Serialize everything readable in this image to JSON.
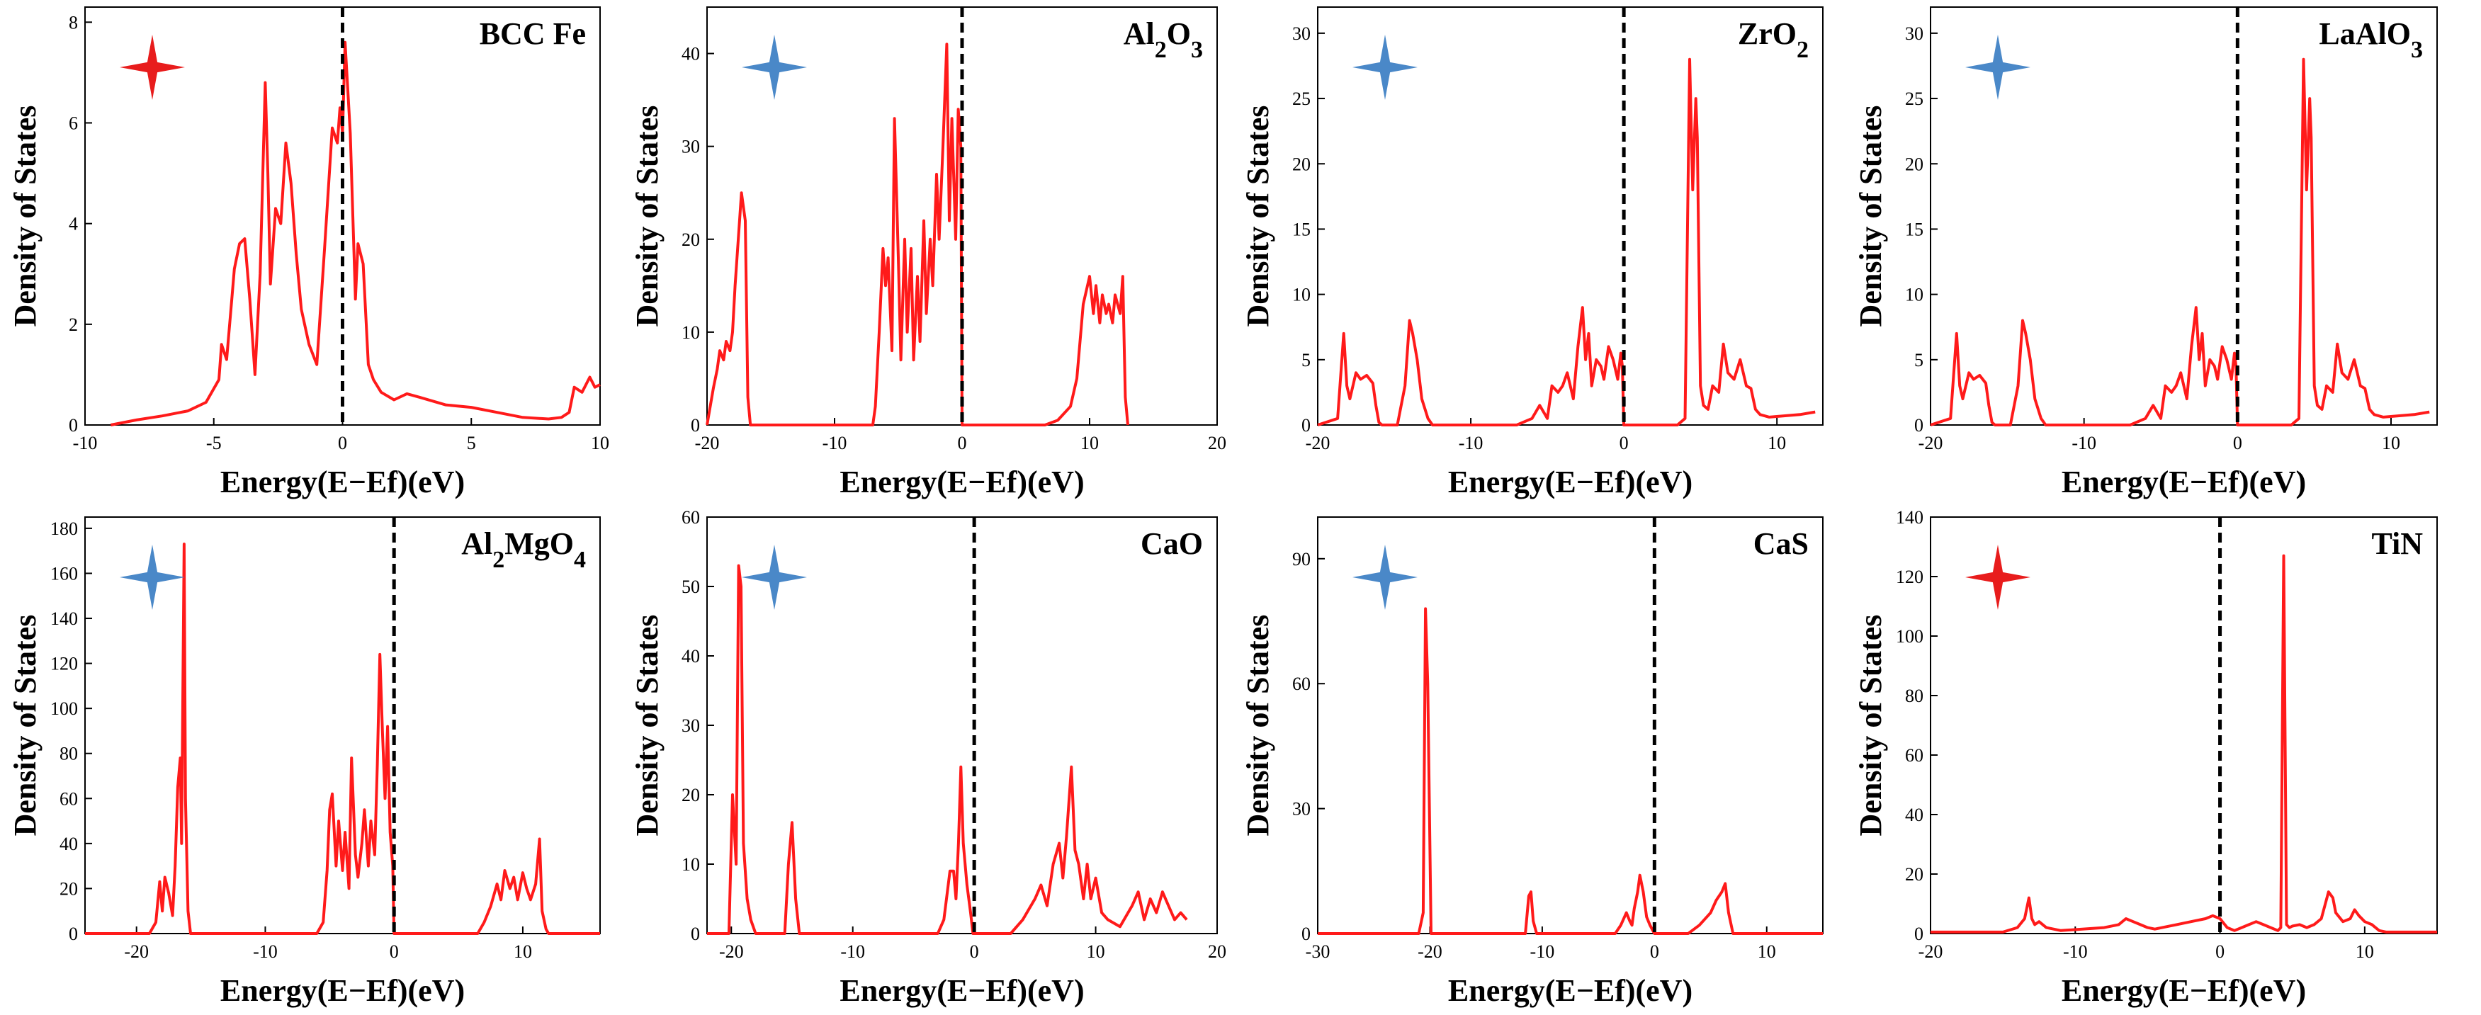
{
  "figure": {
    "colors": {
      "line": "#ff1a1a",
      "fermi": "#000000",
      "star_red": "#e81c1c",
      "star_blue": "#4a88c8"
    }
  },
  "chart_data": [
    {
      "type": "line",
      "title": "BCC Fe",
      "title_parts": [
        {
          "t": "BCC Fe",
          "sub": false
        }
      ],
      "xlabel": "Energy(E−Ef)(eV)",
      "ylabel": "Density of States",
      "xlim": [
        -10,
        10
      ],
      "ylim": [
        0,
        8.3
      ],
      "xticks": [
        -10,
        -5,
        0,
        5,
        10
      ],
      "yticks": [
        0,
        2,
        4,
        6,
        8
      ],
      "star": "red",
      "fermi_level": 0,
      "x": [
        -9,
        -8,
        -7,
        -6,
        -5.3,
        -4.8,
        -4.7,
        -4.5,
        -4.3,
        -4.2,
        -4.0,
        -3.8,
        -3.6,
        -3.4,
        -3.2,
        -3.0,
        -2.9,
        -2.8,
        -2.6,
        -2.4,
        -2.2,
        -2.0,
        -1.8,
        -1.6,
        -1.3,
        -1.0,
        -0.7,
        -0.4,
        -0.2,
        -0.1,
        0.0,
        0.1,
        0.3,
        0.5,
        0.6,
        0.8,
        1.0,
        1.2,
        1.5,
        2.0,
        2.5,
        3,
        4,
        5,
        6,
        7,
        8,
        8.5,
        8.8,
        9.0,
        9.3,
        9.6,
        9.8,
        10
      ],
      "values": [
        0,
        0.1,
        0.18,
        0.28,
        0.45,
        0.9,
        1.6,
        1.3,
        2.5,
        3.1,
        3.6,
        3.7,
        2.5,
        1.0,
        3.0,
        6.8,
        5.0,
        2.8,
        4.3,
        4.0,
        5.6,
        4.8,
        3.4,
        2.3,
        1.6,
        1.2,
        3.5,
        5.9,
        5.6,
        6.3,
        5.8,
        7.6,
        5.8,
        2.5,
        3.6,
        3.2,
        1.2,
        0.9,
        0.65,
        0.5,
        0.62,
        0.55,
        0.4,
        0.35,
        0.25,
        0.15,
        0.12,
        0.15,
        0.25,
        0.75,
        0.65,
        0.95,
        0.75,
        0.8
      ]
    },
    {
      "type": "line",
      "title": "Al2O3",
      "title_parts": [
        {
          "t": "Al",
          "sub": false
        },
        {
          "t": "2",
          "sub": true
        },
        {
          "t": "O",
          "sub": false
        },
        {
          "t": "3",
          "sub": true
        }
      ],
      "xlabel": "Energy(E−Ef)(eV)",
      "ylabel": "Density of States",
      "xlim": [
        -20,
        20
      ],
      "ylim": [
        0,
        45
      ],
      "xticks": [
        -20,
        -10,
        0,
        10,
        20
      ],
      "yticks": [
        0,
        10,
        20,
        30,
        40
      ],
      "star": "blue",
      "fermi_level": 0,
      "x": [
        -20,
        -19.5,
        -19.2,
        -19.0,
        -18.7,
        -18.5,
        -18.2,
        -18.0,
        -17.8,
        -17.5,
        -17.3,
        -17.0,
        -16.8,
        -16.6,
        -16.5,
        -7.0,
        -6.8,
        -6.5,
        -6.2,
        -6.0,
        -5.8,
        -5.5,
        -5.3,
        -5.0,
        -4.8,
        -4.5,
        -4.3,
        -4.0,
        -3.8,
        -3.5,
        -3.3,
        -3.0,
        -2.8,
        -2.5,
        -2.3,
        -2.0,
        -1.8,
        -1.5,
        -1.2,
        -1.0,
        -0.8,
        -0.5,
        -0.3,
        -0.1,
        0.0,
        6.5,
        7.5,
        8.5,
        9.0,
        9.5,
        10.0,
        10.3,
        10.5,
        10.8,
        11.0,
        11.3,
        11.5,
        11.8,
        12.0,
        12.2,
        12.4,
        12.6,
        12.8,
        13.0
      ],
      "values": [
        0,
        4,
        6,
        8,
        7,
        9,
        8,
        10,
        15,
        21,
        25,
        22,
        3,
        0,
        0,
        0,
        2,
        10,
        19,
        15,
        18,
        8,
        33,
        18,
        7,
        20,
        10,
        19,
        7,
        16,
        9,
        22,
        12,
        20,
        15,
        27,
        20,
        30,
        41,
        22,
        33,
        20,
        34,
        30,
        0,
        0,
        0.5,
        2,
        5,
        13,
        16,
        12,
        15,
        11,
        14,
        12,
        13,
        11,
        14,
        13,
        12,
        16,
        3,
        0
      ]
    },
    {
      "type": "line",
      "title": "ZrO2",
      "title_parts": [
        {
          "t": "ZrO",
          "sub": false
        },
        {
          "t": "2",
          "sub": true
        }
      ],
      "xlabel": "Energy(E−Ef)(eV)",
      "ylabel": "Density of States",
      "xlim": [
        -20,
        13
      ],
      "ylim": [
        0,
        32
      ],
      "xticks": [
        -20,
        -10,
        0,
        10
      ],
      "yticks": [
        0,
        5,
        10,
        15,
        20,
        25,
        30
      ],
      "star": "blue",
      "fermi_level": 0,
      "x": [
        -20,
        -18.7,
        -18.3,
        -18.1,
        -17.9,
        -17.5,
        -17.2,
        -16.8,
        -16.4,
        -16.2,
        -16.0,
        -15.8,
        -14.8,
        -14.3,
        -14.0,
        -13.8,
        -13.5,
        -13.2,
        -12.8,
        -12.5,
        -7.0,
        -6.0,
        -5.5,
        -5.0,
        -4.7,
        -4.3,
        -4.0,
        -3.7,
        -3.3,
        -3.0,
        -2.7,
        -2.5,
        -2.3,
        -2.1,
        -1.8,
        -1.5,
        -1.3,
        -1.0,
        -0.7,
        -0.4,
        -0.2,
        -0.1,
        0.0,
        3.5,
        4.0,
        4.3,
        4.5,
        4.7,
        4.8,
        5.0,
        5.2,
        5.5,
        5.8,
        6.2,
        6.5,
        6.8,
        7.2,
        7.6,
        8.0,
        8.3,
        8.6,
        8.9,
        9.5,
        11.5,
        12.5
      ],
      "values": [
        0,
        0.5,
        7,
        3,
        2,
        4,
        3.5,
        3.8,
        3.2,
        1.5,
        0.2,
        0,
        0,
        3,
        8,
        7,
        5,
        2,
        0.5,
        0,
        0,
        0.5,
        1.5,
        0.5,
        3,
        2.5,
        3,
        4,
        2,
        6,
        9,
        5,
        7,
        3,
        5,
        4.5,
        3.5,
        6,
        5,
        3.5,
        5.5,
        4.5,
        0,
        0,
        0.5,
        28,
        18,
        25,
        22,
        3,
        1.5,
        1.2,
        3,
        2.5,
        6.2,
        4,
        3.5,
        5.0,
        3.0,
        2.8,
        1.2,
        0.8,
        0.6,
        0.8,
        1.0
      ]
    },
    {
      "type": "line",
      "title": "LaAlO3",
      "title_parts": [
        {
          "t": "LaAlO",
          "sub": false
        },
        {
          "t": "3",
          "sub": true
        }
      ],
      "xlabel": "Energy(E−Ef)(eV)",
      "ylabel": "Density of States",
      "xlim": [
        -20,
        13
      ],
      "ylim": [
        0,
        32
      ],
      "xticks": [
        -20,
        -10,
        0,
        10
      ],
      "yticks": [
        0,
        5,
        10,
        15,
        20,
        25,
        30
      ],
      "star": "blue",
      "fermi_level": 0,
      "x": [
        -20,
        -18.7,
        -18.3,
        -18.1,
        -17.9,
        -17.5,
        -17.2,
        -16.8,
        -16.4,
        -16.2,
        -16.0,
        -15.8,
        -14.8,
        -14.3,
        -14.0,
        -13.8,
        -13.5,
        -13.2,
        -12.8,
        -12.5,
        -7.0,
        -6.0,
        -5.5,
        -5.0,
        -4.7,
        -4.3,
        -4.0,
        -3.7,
        -3.3,
        -3.0,
        -2.7,
        -2.5,
        -2.3,
        -2.1,
        -1.8,
        -1.5,
        -1.3,
        -1.0,
        -0.7,
        -0.4,
        -0.2,
        -0.1,
        0.0,
        3.5,
        4.0,
        4.3,
        4.5,
        4.7,
        4.8,
        5.0,
        5.2,
        5.5,
        5.8,
        6.2,
        6.5,
        6.8,
        7.2,
        7.6,
        8.0,
        8.3,
        8.6,
        8.9,
        9.5,
        11.5,
        12.5
      ],
      "values": [
        0,
        0.5,
        7,
        3,
        2,
        4,
        3.5,
        3.8,
        3.2,
        1.5,
        0.2,
        0,
        0,
        3,
        8,
        7,
        5,
        2,
        0.5,
        0,
        0,
        0.5,
        1.5,
        0.5,
        3,
        2.5,
        3,
        4,
        2,
        6,
        9,
        5,
        7,
        3,
        5,
        4.5,
        3.5,
        6,
        5,
        3.5,
        5.5,
        4.5,
        0,
        0,
        0.5,
        28,
        18,
        25,
        22,
        3,
        1.5,
        1.2,
        3,
        2.5,
        6.2,
        4,
        3.5,
        5.0,
        3.0,
        2.8,
        1.2,
        0.8,
        0.6,
        0.8,
        1.0
      ]
    },
    {
      "type": "line",
      "title": "Al2MgO4",
      "title_parts": [
        {
          "t": "Al",
          "sub": false
        },
        {
          "t": "2",
          "sub": true
        },
        {
          "t": "MgO",
          "sub": false
        },
        {
          "t": "4",
          "sub": true
        }
      ],
      "xlabel": "Energy(E−Ef)(eV)",
      "ylabel": "Density of States",
      "xlim": [
        -24,
        16
      ],
      "ylim": [
        0,
        185
      ],
      "xticks": [
        -20,
        -10,
        0,
        10
      ],
      "yticks": [
        0,
        20,
        40,
        60,
        80,
        100,
        120,
        140,
        160,
        180
      ],
      "star": "blue",
      "fermi_level": 0,
      "x": [
        -24,
        -19.0,
        -18.5,
        -18.2,
        -18.0,
        -17.8,
        -17.5,
        -17.2,
        -17.0,
        -16.8,
        -16.6,
        -16.5,
        -16.3,
        -16.2,
        -16.0,
        -15.8,
        -6.0,
        -5.5,
        -5.2,
        -5.0,
        -4.8,
        -4.5,
        -4.3,
        -4.0,
        -3.8,
        -3.5,
        -3.3,
        -3.0,
        -2.8,
        -2.5,
        -2.3,
        -2.0,
        -1.8,
        -1.5,
        -1.3,
        -1.1,
        -0.9,
        -0.7,
        -0.5,
        -0.3,
        -0.1,
        0.0,
        6.5,
        7.0,
        7.5,
        8.0,
        8.3,
        8.6,
        9.0,
        9.3,
        9.6,
        10.0,
        10.3,
        10.6,
        11.0,
        11.3,
        11.5,
        11.8,
        12.0,
        16
      ],
      "values": [
        0,
        0,
        5,
        23,
        10,
        25,
        18,
        8,
        30,
        65,
        78,
        40,
        173,
        60,
        10,
        0,
        0,
        5,
        28,
        55,
        62,
        30,
        50,
        28,
        45,
        20,
        78,
        35,
        25,
        40,
        55,
        30,
        50,
        35,
        75,
        124,
        90,
        60,
        92,
        45,
        30,
        0,
        0,
        5,
        12,
        22,
        15,
        28,
        20,
        25,
        15,
        27,
        20,
        15,
        22,
        42,
        10,
        2,
        0,
        0
      ]
    },
    {
      "type": "line",
      "title": "CaO",
      "title_parts": [
        {
          "t": "CaO",
          "sub": false
        }
      ],
      "xlabel": "Energy(E−Ef)(eV)",
      "ylabel": "Density of States",
      "xlim": [
        -22,
        20
      ],
      "ylim": [
        0,
        60
      ],
      "xticks": [
        -20,
        -10,
        0,
        10,
        20
      ],
      "yticks": [
        0,
        10,
        20,
        30,
        40,
        50,
        60
      ],
      "star": "blue",
      "fermi_level": 0,
      "x": [
        -22,
        -20.2,
        -19.9,
        -19.6,
        -19.4,
        -19.2,
        -19.0,
        -18.7,
        -18.4,
        -18.0,
        -15.6,
        -15.3,
        -15.0,
        -14.7,
        -14.4,
        -3.0,
        -2.5,
        -2.0,
        -1.7,
        -1.5,
        -1.3,
        -1.1,
        -0.9,
        -0.6,
        -0.3,
        -0.1,
        3.0,
        4.0,
        5.0,
        5.5,
        6.0,
        6.5,
        7.0,
        7.3,
        7.6,
        8.0,
        8.3,
        8.6,
        9.0,
        9.3,
        9.6,
        10.0,
        10.5,
        11.0,
        12.0,
        13.0,
        13.5,
        14.0,
        14.5,
        15.0,
        15.5,
        16.0,
        16.5,
        17.0,
        17.5
      ],
      "values": [
        0,
        0,
        20,
        10,
        53,
        50,
        13,
        5,
        2,
        0,
        0,
        10,
        16,
        5,
        0,
        0,
        2,
        9,
        9,
        5,
        13,
        24,
        13,
        7,
        3,
        0,
        0,
        2,
        5,
        7,
        4,
        10,
        13,
        8,
        14,
        24,
        12,
        10,
        5,
        10,
        5,
        8,
        3,
        2,
        1,
        4,
        6,
        2,
        5,
        3,
        6,
        4,
        2,
        3,
        2
      ]
    },
    {
      "type": "line",
      "title": "CaS",
      "title_parts": [
        {
          "t": "CaS",
          "sub": false
        }
      ],
      "xlabel": "Energy(E−Ef)(eV)",
      "ylabel": "Density of States",
      "xlim": [
        -30,
        15
      ],
      "ylim": [
        0,
        100
      ],
      "xticks": [
        -30,
        -20,
        -10,
        0,
        10
      ],
      "yticks": [
        0,
        30,
        60,
        90
      ],
      "star": "blue",
      "fermi_level": 0,
      "x": [
        -30,
        -21.0,
        -20.6,
        -20.4,
        -20.2,
        -19.9,
        -11.5,
        -11.2,
        -11.0,
        -10.8,
        -10.5,
        -3.5,
        -3.0,
        -2.5,
        -2.2,
        -2.0,
        -1.8,
        -1.5,
        -1.3,
        -1.0,
        -0.7,
        -0.4,
        -0.1,
        0.0,
        3.0,
        4.0,
        5.0,
        5.5,
        6.0,
        6.3,
        6.6,
        7.0,
        15
      ],
      "values": [
        0,
        0,
        5,
        78,
        60,
        0,
        0,
        9,
        10,
        3,
        0,
        0,
        2,
        5,
        3,
        2,
        6,
        10,
        14,
        10,
        4,
        2,
        0.5,
        0,
        0,
        2,
        5,
        8,
        10,
        12,
        5,
        0,
        0
      ]
    },
    {
      "type": "line",
      "title": "TiN",
      "title_parts": [
        {
          "t": "TiN",
          "sub": false
        }
      ],
      "xlabel": "Energy(E−Ef)(eV)",
      "ylabel": "Density of States",
      "xlim": [
        -20,
        15
      ],
      "ylim": [
        0,
        140
      ],
      "xticks": [
        -20,
        -10,
        0,
        10
      ],
      "yticks": [
        0,
        20,
        40,
        60,
        80,
        100,
        120,
        140
      ],
      "star": "red",
      "fermi_level": 0,
      "x": [
        -20,
        -15.0,
        -14.0,
        -13.5,
        -13.2,
        -13.0,
        -12.8,
        -12.5,
        -12.0,
        -11.0,
        -8.0,
        -7.0,
        -6.5,
        -6.0,
        -5.5,
        -5.0,
        -4.5,
        -4.0,
        -3.0,
        -2.0,
        -1.0,
        -0.5,
        0.0,
        0.5,
        1.0,
        1.5,
        2.0,
        2.5,
        3.0,
        3.5,
        4.0,
        4.2,
        4.4,
        4.6,
        4.8,
        5.0,
        5.5,
        6.0,
        6.5,
        7.0,
        7.5,
        7.8,
        8.0,
        8.5,
        9.0,
        9.3,
        9.6,
        10.0,
        10.5,
        11.0,
        11.5,
        15
      ],
      "values": [
        0.5,
        0.5,
        2,
        5,
        12,
        5,
        3,
        4,
        2,
        1,
        2,
        3,
        5,
        4,
        3,
        2,
        1.5,
        2,
        3,
        4,
        5,
        6,
        5,
        2,
        1,
        2,
        3,
        4,
        3,
        2,
        1,
        2,
        127,
        3,
        2,
        2.5,
        3,
        2,
        3,
        5,
        14,
        12,
        7,
        4,
        5,
        8,
        6,
        4,
        3,
        1,
        0.5,
        0.5
      ]
    }
  ]
}
